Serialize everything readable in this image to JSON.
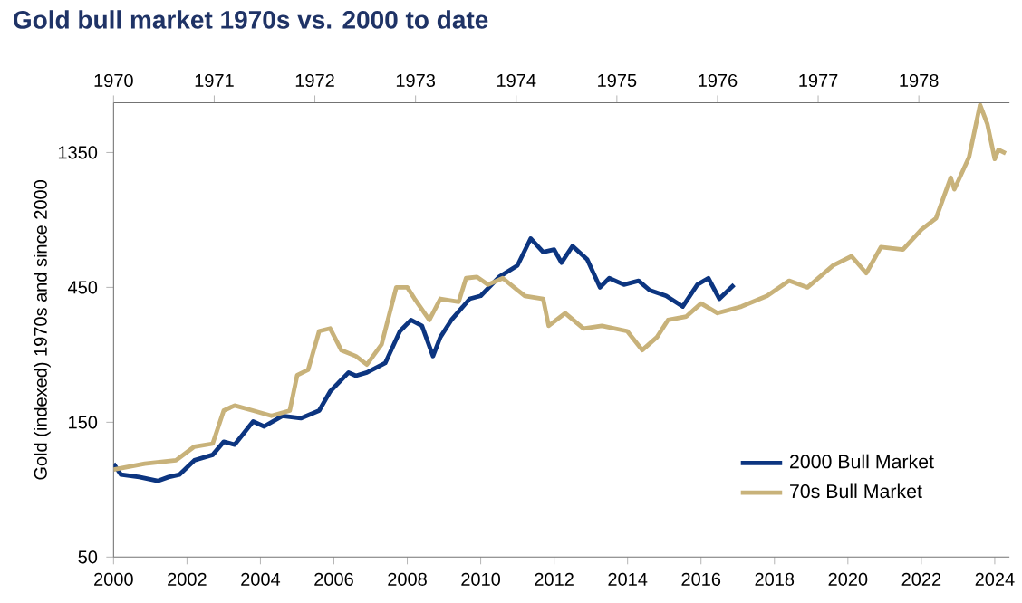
{
  "chart_data": {
    "type": "line",
    "title": "Gold bull market 1970s vs. 2000 to date",
    "ylabel": "Gold (indexed) 1970s and since 2000",
    "log": "y",
    "legend": "bottom right",
    "marker": "none",
    "line_style": "solid",
    "grid": false,
    "xlim": [
      2000,
      2024.4
    ],
    "xticks": [
      2000,
      2002,
      2004,
      2006,
      2008,
      2010,
      2012,
      2014,
      2016,
      2018,
      2020,
      2022,
      2024
    ],
    "x2lim": [
      1970,
      1978.9
    ],
    "x2ticks": [
      1970,
      1971,
      1972,
      1973,
      1974,
      1975,
      1976,
      1977,
      1978
    ],
    "ylim": [
      50,
      2025
    ],
    "yticks": [
      50,
      150,
      450,
      1350
    ],
    "series": [
      {
        "name": "2000 Bull Market",
        "color": "#0c3580",
        "x": [
          2000.0,
          2000.2,
          2000.7,
          2001.2,
          2001.5,
          2001.8,
          2002.2,
          2002.7,
          2003.0,
          2003.3,
          2003.8,
          2004.1,
          2004.6,
          2005.1,
          2005.6,
          2005.9,
          2006.4,
          2006.6,
          2006.9,
          2007.4,
          2007.8,
          2008.1,
          2008.4,
          2008.7,
          2008.9,
          2009.2,
          2009.7,
          2010.0,
          2010.5,
          2011.0,
          2011.36,
          2011.7,
          2012.0,
          2012.2,
          2012.5,
          2012.9,
          2013.25,
          2013.5,
          2013.9,
          2014.3,
          2014.6,
          2015.05,
          2015.5,
          2015.9,
          2016.2,
          2016.5,
          2016.9
        ],
        "values": [
          107,
          98,
          96,
          93,
          96,
          98,
          110,
          115,
          128,
          125,
          151,
          145,
          158,
          155,
          165,
          193,
          225,
          219,
          225,
          243,
          315,
          345,
          329,
          257,
          300,
          345,
          410,
          420,
          490,
          538,
          670,
          600,
          612,
          550,
          630,
          565,
          450,
          485,
          460,
          475,
          440,
          420,
          385,
          460,
          485,
          410,
          460
        ]
      },
      {
        "name": "70s Bull Market",
        "color": "#c8b27a",
        "x": [
          2000.0,
          2000.85,
          2001.7,
          2002.2,
          2002.7,
          2003.0,
          2003.3,
          2003.8,
          2004.3,
          2004.8,
          2005.0,
          2005.3,
          2005.6,
          2005.9,
          2006.2,
          2006.6,
          2006.9,
          2007.3,
          2007.7,
          2008.0,
          2008.2,
          2008.6,
          2008.9,
          2009.4,
          2009.6,
          2009.9,
          2010.2,
          2010.6,
          2011.0,
          2011.2,
          2011.7,
          2011.85,
          2012.3,
          2012.8,
          2013.3,
          2013.99,
          2014.4,
          2014.8,
          2015.1,
          2015.6,
          2016.0,
          2016.45,
          2017.1,
          2017.8,
          2018.4,
          2018.9,
          2019.6,
          2020.1,
          2020.5,
          2020.9,
          2021.5,
          2022.0,
          2022.4,
          2022.8,
          2022.9,
          2023.3,
          2023.6,
          2023.8,
          2024.0,
          2024.1,
          2024.3
        ],
        "values": [
          102,
          107,
          110,
          123,
          126,
          165,
          172,
          165,
          158,
          165,
          220,
          230,
          315,
          322,
          270,
          257,
          240,
          283,
          450,
          450,
          410,
          345,
          410,
          400,
          485,
          490,
          460,
          485,
          440,
          420,
          410,
          329,
          365,
          322,
          329,
          315,
          270,
          300,
          345,
          355,
          395,
          365,
          385,
          420,
          475,
          450,
          538,
          580,
          505,
          625,
          612,
          720,
          790,
          1100,
          1000,
          1300,
          1990,
          1700,
          1280,
          1380,
          1340
        ]
      }
    ]
  }
}
